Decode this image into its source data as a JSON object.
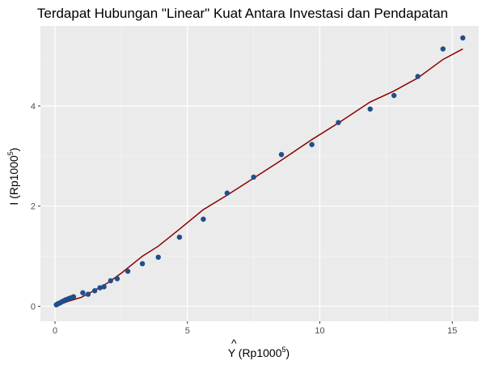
{
  "chart_data": {
    "type": "scatter",
    "title": "Terdapat Hubungan \"Linear\" Kuat Antara Investasi dan Pendapatan",
    "xlabel": {
      "hat": "^",
      "main": "Y (Rp1000",
      "sup": "5",
      "end": ")"
    },
    "ylabel": {
      "main": "I (Rp1000",
      "sup": "5",
      "end": ")"
    },
    "xlim": [
      -0.55,
      16.0
    ],
    "ylim": [
      -0.3,
      5.6
    ],
    "xticks": [
      0,
      5,
      10,
      15
    ],
    "yticks": [
      0,
      2,
      4
    ],
    "x_tick_labels": [
      "0",
      "5",
      "10",
      "15"
    ],
    "y_tick_labels": [
      "0",
      "2",
      "4"
    ],
    "grid": true,
    "point_color": "#1f4e8c",
    "line_color": "#8b0000",
    "panel_color": "#ebebeb",
    "points": [
      {
        "x": 0.05,
        "y": 0.03
      },
      {
        "x": 0.08,
        "y": 0.04
      },
      {
        "x": 0.11,
        "y": 0.05
      },
      {
        "x": 0.15,
        "y": 0.06
      },
      {
        "x": 0.2,
        "y": 0.07
      },
      {
        "x": 0.26,
        "y": 0.09
      },
      {
        "x": 0.33,
        "y": 0.11
      },
      {
        "x": 0.4,
        "y": 0.13
      },
      {
        "x": 0.5,
        "y": 0.15
      },
      {
        "x": 0.6,
        "y": 0.17
      },
      {
        "x": 0.7,
        "y": 0.19
      },
      {
        "x": 1.05,
        "y": 0.27
      },
      {
        "x": 1.25,
        "y": 0.24
      },
      {
        "x": 1.5,
        "y": 0.31
      },
      {
        "x": 1.7,
        "y": 0.37
      },
      {
        "x": 1.85,
        "y": 0.39
      },
      {
        "x": 2.1,
        "y": 0.51
      },
      {
        "x": 2.35,
        "y": 0.55
      },
      {
        "x": 2.75,
        "y": 0.7
      },
      {
        "x": 3.3,
        "y": 0.85
      },
      {
        "x": 3.9,
        "y": 0.98
      },
      {
        "x": 4.7,
        "y": 1.38
      },
      {
        "x": 5.6,
        "y": 1.74
      },
      {
        "x": 6.5,
        "y": 2.26
      },
      {
        "x": 7.5,
        "y": 2.58
      },
      {
        "x": 8.55,
        "y": 3.03
      },
      {
        "x": 9.7,
        "y": 3.23
      },
      {
        "x": 10.7,
        "y": 3.67
      },
      {
        "x": 11.9,
        "y": 3.94
      },
      {
        "x": 12.8,
        "y": 4.21
      },
      {
        "x": 13.7,
        "y": 4.59
      },
      {
        "x": 14.65,
        "y": 5.14
      },
      {
        "x": 15.4,
        "y": 5.36
      }
    ],
    "fitted_line": [
      {
        "x": 0.05,
        "y": 0.01
      },
      {
        "x": 0.5,
        "y": 0.1
      },
      {
        "x": 1.0,
        "y": 0.18
      },
      {
        "x": 1.5,
        "y": 0.32
      },
      {
        "x": 2.0,
        "y": 0.47
      },
      {
        "x": 2.5,
        "y": 0.66
      },
      {
        "x": 3.3,
        "y": 1.0
      },
      {
        "x": 3.9,
        "y": 1.2
      },
      {
        "x": 4.7,
        "y": 1.54
      },
      {
        "x": 5.6,
        "y": 1.93
      },
      {
        "x": 6.5,
        "y": 2.22
      },
      {
        "x": 7.5,
        "y": 2.56
      },
      {
        "x": 8.5,
        "y": 2.9
      },
      {
        "x": 9.7,
        "y": 3.33
      },
      {
        "x": 10.7,
        "y": 3.66
      },
      {
        "x": 11.9,
        "y": 4.08
      },
      {
        "x": 12.8,
        "y": 4.3
      },
      {
        "x": 13.7,
        "y": 4.56
      },
      {
        "x": 14.65,
        "y": 4.93
      },
      {
        "x": 15.4,
        "y": 5.14
      }
    ]
  }
}
